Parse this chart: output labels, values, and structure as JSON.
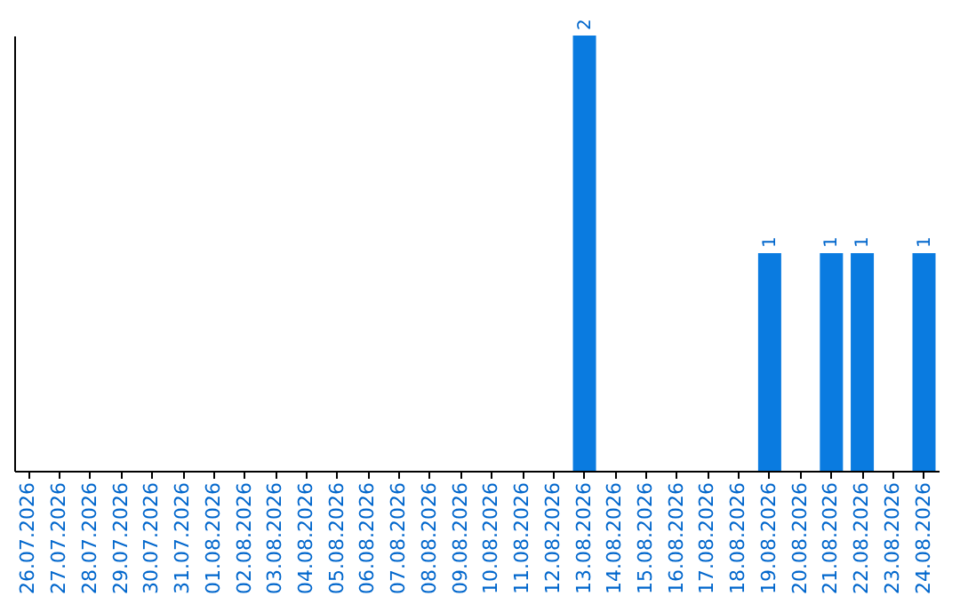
{
  "chart_data": {
    "type": "bar",
    "categories": [
      "26.07.2026",
      "27.07.2026",
      "28.07.2026",
      "29.07.2026",
      "30.07.2026",
      "31.07.2026",
      "01.08.2026",
      "02.08.2026",
      "03.08.2026",
      "04.08.2026",
      "05.08.2026",
      "06.08.2026",
      "07.08.2026",
      "08.08.2026",
      "09.08.2026",
      "10.08.2026",
      "11.08.2026",
      "12.08.2026",
      "13.08.2026",
      "14.08.2026",
      "15.08.2026",
      "16.08.2026",
      "17.08.2026",
      "18.08.2026",
      "19.08.2026",
      "20.08.2026",
      "21.08.2026",
      "22.08.2026",
      "23.08.2026",
      "24.08.2026"
    ],
    "values": [
      null,
      null,
      null,
      null,
      null,
      null,
      null,
      null,
      null,
      null,
      null,
      null,
      null,
      null,
      null,
      null,
      null,
      null,
      2,
      null,
      null,
      null,
      null,
      null,
      1,
      null,
      1,
      1,
      null,
      1
    ],
    "data_labels": true,
    "color": "#0a7be0",
    "tick_labels": "x",
    "grid": false
  }
}
